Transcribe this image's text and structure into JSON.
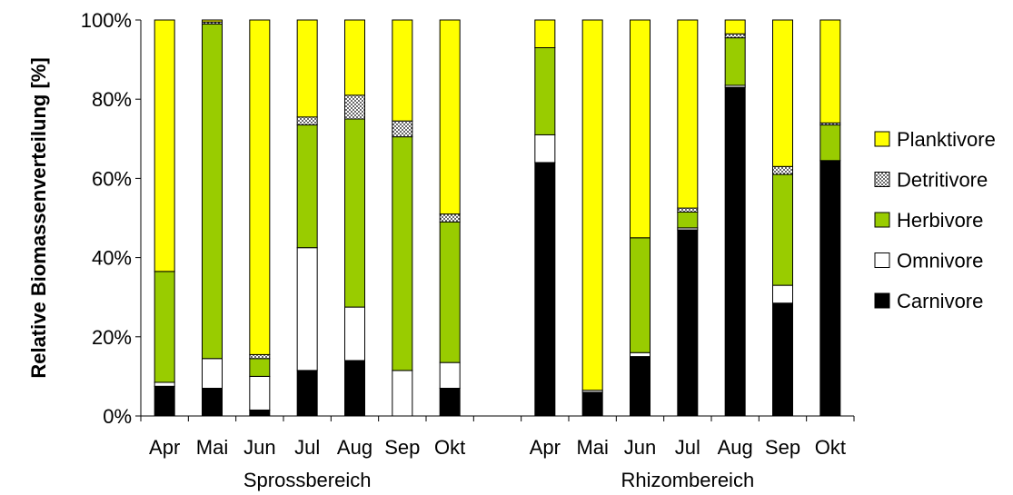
{
  "chart_data": {
    "type": "bar",
    "stacked": true,
    "normalized": true,
    "ylabel": "Relative Biomassenverteilung [%]",
    "ylim": [
      0,
      100
    ],
    "yticks": [
      "0%",
      "20%",
      "40%",
      "60%",
      "80%",
      "100%"
    ],
    "grid": false,
    "legend_position": "right",
    "groups": [
      {
        "label": "Sprossbereich",
        "categories": [
          "Apr",
          "Mai",
          "Jun",
          "Jul",
          "Aug",
          "Sep",
          "Okt"
        ]
      },
      {
        "label": "Rhizombereich",
        "categories": [
          "Apr",
          "Mai",
          "Jun",
          "Jul",
          "Aug",
          "Sep",
          "Okt"
        ]
      }
    ],
    "series": [
      {
        "name": "Carnivore",
        "color": "#000000",
        "pattern": "solid",
        "values": [
          7.5,
          7,
          1.5,
          11.5,
          14,
          0,
          7,
          64,
          6,
          15,
          47,
          83,
          28.5,
          64.5
        ]
      },
      {
        "name": "Omnivore",
        "color": "#ffffff",
        "pattern": "solid",
        "values": [
          1,
          7.5,
          8.5,
          31,
          13.5,
          11.5,
          6.5,
          7,
          0.5,
          1,
          0.5,
          0.5,
          4.5,
          0
        ]
      },
      {
        "name": "Herbivore",
        "color": "#99cc00",
        "pattern": "solid",
        "values": [
          28,
          84.5,
          4.5,
          31,
          47.5,
          59,
          35.5,
          22,
          0,
          29,
          4,
          12,
          28,
          9
        ]
      },
      {
        "name": "Detritivore",
        "color": "#ffffff",
        "pattern": "dots",
        "values": [
          0,
          0.5,
          1,
          2,
          6,
          4,
          2,
          0,
          0,
          0,
          1,
          1,
          2,
          0.5
        ]
      },
      {
        "name": "Planktivore",
        "color": "#ffff00",
        "pattern": "solid",
        "values": [
          63.5,
          0.5,
          84.5,
          24.5,
          19,
          25.5,
          49,
          7,
          93.5,
          55,
          47.5,
          3.5,
          37,
          26
        ]
      }
    ]
  }
}
